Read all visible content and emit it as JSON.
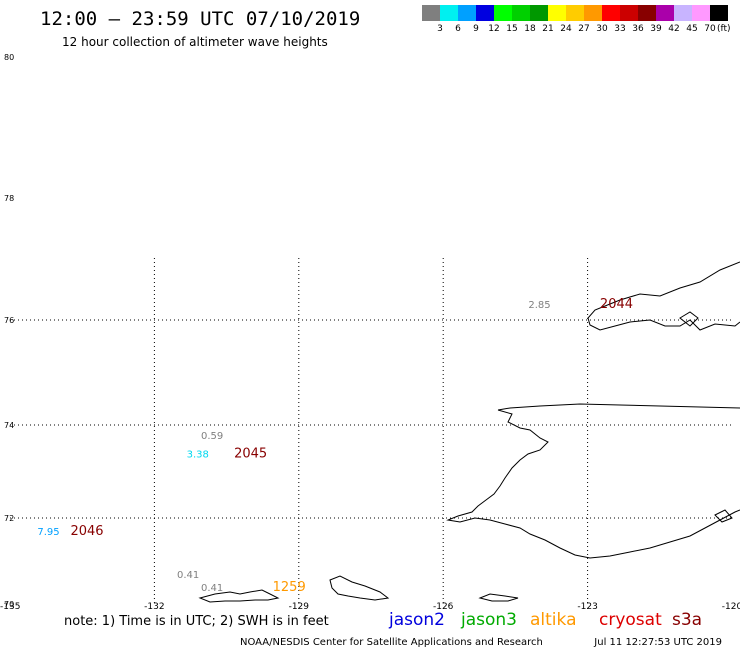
{
  "header": {
    "title": "12:00 – 23:59 UTC 07/10/2019",
    "subtitle": "12 hour collection of altimeter wave heights"
  },
  "colorbar": {
    "unit": "(ft)",
    "bins": [
      {
        "label": "3",
        "color": "#7f7f7f"
      },
      {
        "label": "6",
        "color": "#00f0f0"
      },
      {
        "label": "9",
        "color": "#00a0ff"
      },
      {
        "label": "12",
        "color": "#0000e0"
      },
      {
        "label": "15",
        "color": "#00ff00"
      },
      {
        "label": "18",
        "color": "#00d000"
      },
      {
        "label": "21",
        "color": "#009800"
      },
      {
        "label": "24",
        "color": "#ffff00"
      },
      {
        "label": "27",
        "color": "#ffcc00"
      },
      {
        "label": "30",
        "color": "#ff9900"
      },
      {
        "label": "33",
        "color": "#ff0000"
      },
      {
        "label": "36",
        "color": "#cc0000"
      },
      {
        "label": "39",
        "color": "#880000"
      },
      {
        "label": "42",
        "color": "#aa00aa"
      },
      {
        "label": "45",
        "color": "#c8b4ff"
      },
      {
        "label": "70",
        "color": "#ff99ff"
      },
      {
        "label": "",
        "color": "#000000"
      }
    ]
  },
  "chart_data": {
    "type": "scatter",
    "title": "12:00 – 23:59 UTC 07/10/2019",
    "subtitle": "12 hour collection of altimeter wave heights",
    "xlim": [
      -135,
      -120
    ],
    "ylim": [
      70,
      80
    ],
    "x_ticks": [
      "-135",
      "-132",
      "-129",
      "-126",
      "-123",
      "-120"
    ],
    "y_ticks": [
      "80",
      "78",
      "76",
      "74",
      "72",
      "70"
    ],
    "grid": true,
    "swh_points": [
      {
        "label": "2.85",
        "lon": -124.0,
        "lat": 76.2,
        "color": "#808080"
      },
      {
        "label": "0.59",
        "lon": -130.8,
        "lat": 73.7,
        "color": "#808080"
      },
      {
        "label": "3.38",
        "lon": -131.1,
        "lat": 73.3,
        "color": "#00d8f0"
      },
      {
        "label": "7.95",
        "lon": -134.2,
        "lat": 71.6,
        "color": "#00a0ff"
      },
      {
        "label": "0.41",
        "lon": -131.3,
        "lat": 70.6,
        "color": "#808080"
      },
      {
        "label": "0.41",
        "lon": -130.8,
        "lat": 70.3,
        "color": "#808080"
      }
    ],
    "time_labels": [
      {
        "label": "2044",
        "lon": -122.4,
        "lat": 76.2,
        "color": "#880000"
      },
      {
        "label": "2045",
        "lon": -130.0,
        "lat": 73.3,
        "color": "#880000"
      },
      {
        "label": "2046",
        "lon": -133.4,
        "lat": 71.6,
        "color": "#880000"
      },
      {
        "label": "1259",
        "lon": -129.2,
        "lat": 70.3,
        "color": "#ff9900"
      }
    ]
  },
  "footer": {
    "note": "note: 1) Time is in UTC; 2) SWH is in feet",
    "satellites": [
      {
        "name": "jason2",
        "color": "#0000dd"
      },
      {
        "name": "jason3",
        "color": "#00aa00"
      },
      {
        "name": "altika",
        "color": "#ff9900"
      },
      {
        "name": "cryosat",
        "color": "#dd0000"
      },
      {
        "name": "s3a",
        "color": "#880000"
      }
    ],
    "credit": "NOAA/NESDIS Center for Satellite Applications and Research",
    "timestamp": "Jul 11 12:27:53 UTC 2019"
  }
}
